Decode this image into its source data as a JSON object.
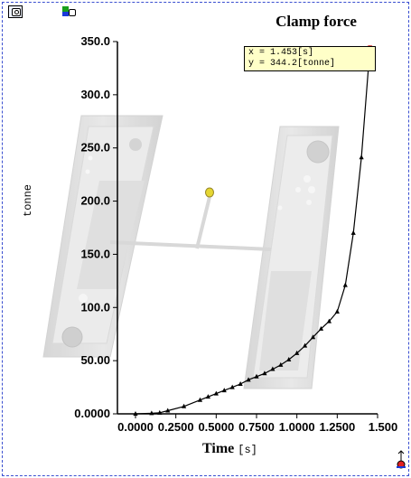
{
  "toolbar": {
    "camera_icon": "camera-icon",
    "layers_icon": "layers-icon"
  },
  "tooltip": {
    "x_line": "x = 1.453[s]",
    "y_line": "y = 344.2[tonne]"
  },
  "chart_data": {
    "type": "line",
    "title": "Clamp force",
    "xlabel": "Time",
    "xunit": "[s]",
    "ylabel": "tonne",
    "xlim": [
      0,
      1.5
    ],
    "ylim": [
      0,
      350
    ],
    "xticks": [
      "0.0000",
      "0.2500",
      "0.5000",
      "0.7500",
      "1.0000",
      "1.2500",
      "1.500"
    ],
    "yticks": [
      "0.0000",
      "50.00",
      "100.0",
      "150.0",
      "200.0",
      "250.0",
      "300.0",
      "350.0"
    ],
    "marker": "triangle",
    "line_color": "#000000",
    "highlight_color": "#e02020",
    "highlighted_point": {
      "x": 1.453,
      "y": 344.2
    },
    "series": [
      {
        "x": [
          0.0,
          0.1,
          0.15,
          0.2,
          0.3,
          0.4,
          0.45,
          0.5,
          0.55,
          0.6,
          0.65,
          0.7,
          0.75,
          0.8,
          0.85,
          0.9,
          0.95,
          1.0,
          1.05,
          1.1,
          1.15,
          1.2,
          1.25,
          1.3,
          1.35,
          1.4,
          1.453
        ],
        "y": [
          0,
          0.5,
          1,
          3,
          7,
          13,
          16,
          19,
          22,
          25,
          28,
          32,
          35,
          38,
          42,
          46,
          51,
          57,
          64,
          72,
          80,
          87,
          96,
          121,
          170,
          241,
          344.2
        ]
      }
    ]
  }
}
